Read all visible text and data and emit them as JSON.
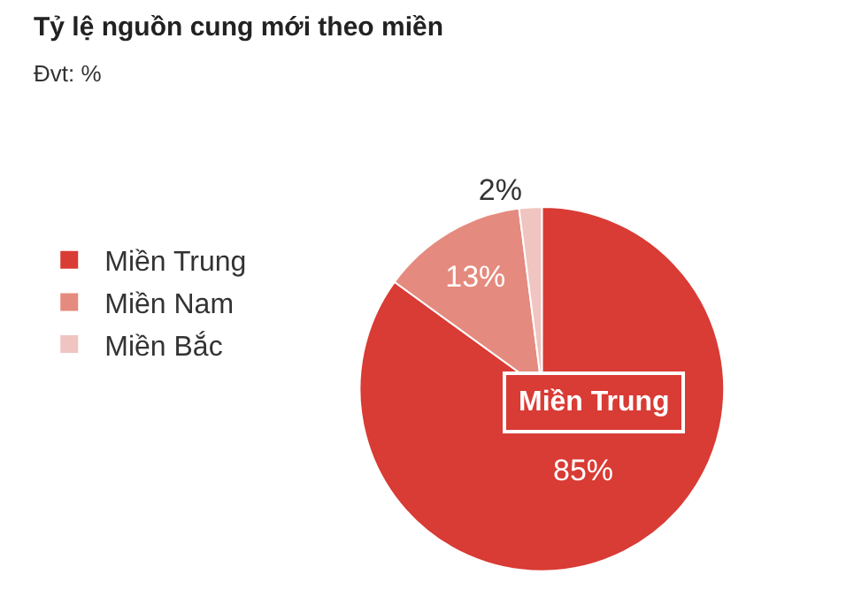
{
  "chart_data": {
    "type": "pie",
    "title": "Tỷ lệ nguồn cung mới theo miền",
    "subtitle": "Đvt: %",
    "categories": [
      "Miền Trung",
      "Miền Nam",
      "Miền Bắc"
    ],
    "values": [
      85,
      13,
      2
    ],
    "colors": [
      "#d93b35",
      "#e58a7e",
      "#f0c4c0"
    ],
    "value_labels": [
      "85%",
      "13%",
      "2%"
    ],
    "annotations": [
      "Miền Trung"
    ],
    "legend": "left"
  }
}
